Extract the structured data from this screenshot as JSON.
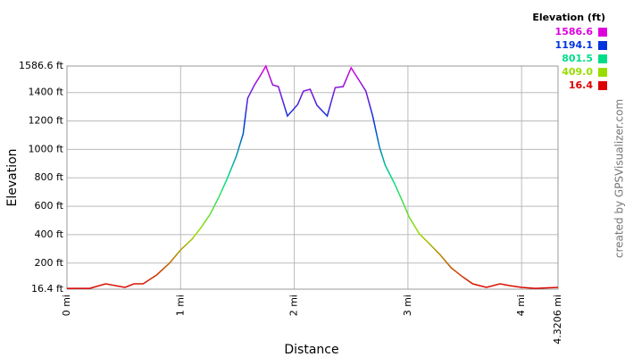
{
  "chart_data": {
    "type": "line",
    "x_label": "Distance",
    "y_label": "Elevation",
    "watermark": "created by GPSVisualizer.com",
    "legend_title": "Elevation (ft)",
    "legend": [
      {
        "value": 1586.6,
        "color": "#dd00dd"
      },
      {
        "value": 1194.1,
        "color": "#0033dd"
      },
      {
        "value": 801.5,
        "color": "#00dd88"
      },
      {
        "value": 409,
        "label": "409.0",
        "color": "#99dd00"
      },
      {
        "value": 16.4,
        "color": "#dd0000"
      }
    ],
    "grid": true,
    "xlim": [
      0,
      4.3206
    ],
    "ylim": [
      16.4,
      1586.6
    ],
    "xticks": [
      {
        "value": 0,
        "label": "0 mi"
      },
      {
        "value": 1,
        "label": "1 mi"
      },
      {
        "value": 2,
        "label": "2 mi"
      },
      {
        "value": 3,
        "label": "3 mi"
      },
      {
        "value": 4,
        "label": "4 mi"
      },
      {
        "value": 4.3206,
        "label": "4.3206 mi"
      }
    ],
    "yticks": [
      {
        "value": 16.4,
        "label": "16.4 ft"
      },
      {
        "value": 200,
        "label": "200 ft"
      },
      {
        "value": 400,
        "label": "400 ft"
      },
      {
        "value": 600,
        "label": "600 ft"
      },
      {
        "value": 800,
        "label": "800 ft"
      },
      {
        "value": 1000,
        "label": "1000 ft"
      },
      {
        "value": 1200,
        "label": "1200 ft"
      },
      {
        "value": 1400,
        "label": "1400 ft"
      },
      {
        "value": 1586.6,
        "label": "1586.6 ft"
      }
    ],
    "x": [
      0,
      0.2,
      0.34,
      0.43,
      0.51,
      0.59,
      0.67,
      0.79,
      0.9,
      1.0,
      1.1,
      1.18,
      1.26,
      1.34,
      1.41,
      1.49,
      1.55,
      1.59,
      1.65,
      1.7,
      1.75,
      1.81,
      1.86,
      1.94,
      2.03,
      2.08,
      2.14,
      2.2,
      2.29,
      2.36,
      2.43,
      2.5,
      2.57,
      2.63,
      2.69,
      2.75,
      2.8,
      2.88,
      2.95,
      3.01,
      3.1,
      3.18,
      3.28,
      3.38,
      3.48,
      3.57,
      3.69,
      3.81,
      3.9,
      4.0,
      4.12,
      4.3206
    ],
    "series": [
      {
        "name": "Elevation",
        "values": [
          22,
          22,
          54,
          41,
          29,
          54,
          54,
          117,
          198,
          293,
          368,
          450,
          544,
          670,
          795,
          952,
          1109,
          1360,
          1454,
          1517,
          1586.6,
          1454,
          1442,
          1235,
          1316,
          1410,
          1423,
          1310,
          1235,
          1435,
          1442,
          1574,
          1486,
          1410,
          1235,
          1015,
          889,
          763,
          638,
          525,
          406,
          343,
          261,
          167,
          104,
          54,
          29,
          54,
          41,
          29,
          22,
          29
        ]
      }
    ]
  }
}
